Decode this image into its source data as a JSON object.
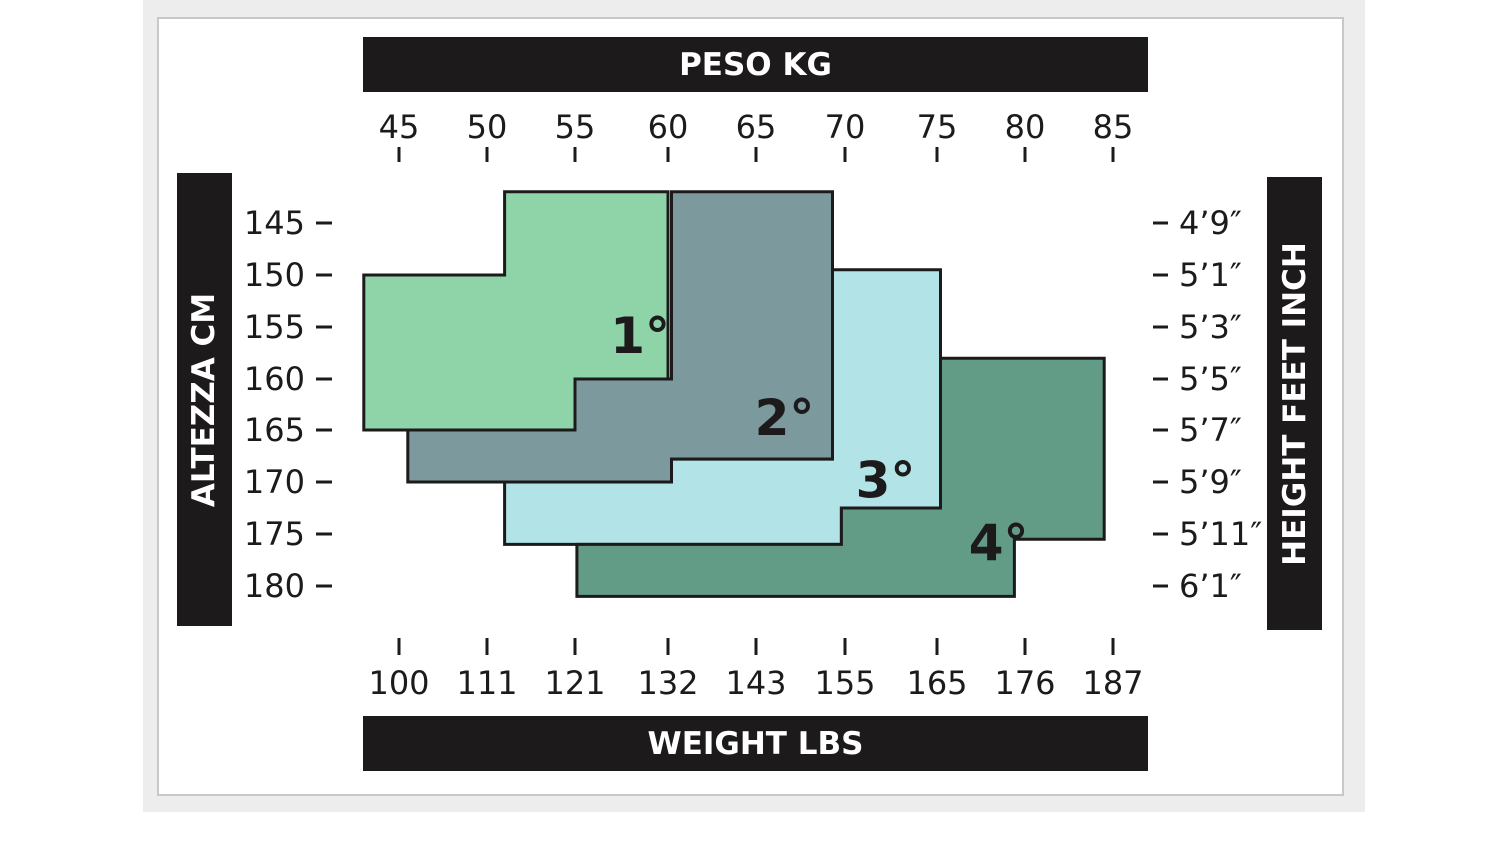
{
  "chart_data": {
    "type": "table",
    "axes": {
      "top": {
        "label": "PESO KG",
        "ticks": [
          "45",
          "50",
          "55",
          "60",
          "65",
          "70",
          "75",
          "80",
          "85"
        ]
      },
      "bottom": {
        "label": "WEIGHT LBS",
        "ticks": [
          "100",
          "111",
          "121",
          "132",
          "143",
          "155",
          "165",
          "176",
          "187"
        ]
      },
      "left": {
        "label": "ALTEZZA CM",
        "ticks": [
          "145",
          "150",
          "155",
          "160",
          "165",
          "170",
          "175",
          "180"
        ]
      },
      "right": {
        "label": "HEIGHT FEET INCH",
        "ticks": [
          "4’9″",
          "5’1″",
          "5’3″",
          "5’5″",
          "5’7″",
          "5’9″",
          "5’11″",
          "6’1″"
        ]
      }
    },
    "sizes": [
      {
        "label": "1°",
        "color": "#8fd4a8",
        "polygon": [
          [
            43,
            150
          ],
          [
            43,
            165
          ],
          [
            55,
            165
          ],
          [
            55,
            160
          ],
          [
            60,
            160
          ],
          [
            60,
            142
          ],
          [
            51,
            142
          ],
          [
            51,
            150
          ]
        ]
      },
      {
        "label": "2°",
        "color": "#7c999d",
        "polygon": [
          [
            45.5,
            165
          ],
          [
            45.5,
            170
          ],
          [
            60.2,
            170
          ],
          [
            60.2,
            167.8
          ],
          [
            69.3,
            167.8
          ],
          [
            69.3,
            142
          ],
          [
            60.2,
            142
          ],
          [
            60.2,
            160
          ],
          [
            55,
            160
          ],
          [
            55,
            165
          ]
        ]
      },
      {
        "label": "3°",
        "color": "#b2e3e6",
        "polygon": [
          [
            51,
            170
          ],
          [
            51,
            176
          ],
          [
            69.8,
            176
          ],
          [
            69.8,
            172.5
          ],
          [
            75.2,
            172.5
          ],
          [
            75.2,
            149.5
          ],
          [
            69.3,
            149.5
          ],
          [
            69.3,
            167.8
          ],
          [
            60.2,
            167.8
          ],
          [
            60.2,
            170
          ]
        ]
      },
      {
        "label": "4°",
        "color": "#639c86",
        "polygon": [
          [
            55.1,
            176
          ],
          [
            55.1,
            181
          ],
          [
            79.4,
            181
          ],
          [
            79.4,
            175.5
          ],
          [
            84.5,
            175.5
          ],
          [
            84.5,
            158
          ],
          [
            75.2,
            158
          ],
          [
            75.2,
            172.5
          ],
          [
            69.8,
            172.5
          ],
          [
            69.8,
            176
          ]
        ]
      }
    ]
  }
}
